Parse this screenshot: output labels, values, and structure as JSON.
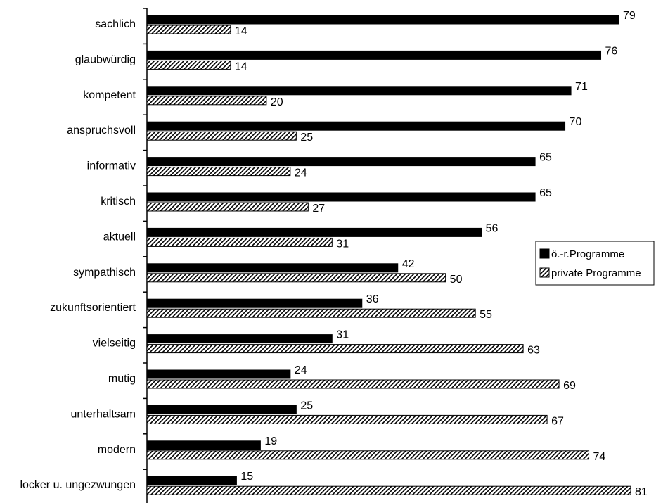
{
  "chart_data": {
    "type": "bar",
    "orientation": "horizontal",
    "categories": [
      "sachlich",
      "glaubwürdig",
      "kompetent",
      "anspruchsvoll",
      "informativ",
      "kritisch",
      "aktuell",
      "sympathisch",
      "zukunftsorientiert",
      "vielseitig",
      "mutig",
      "unterhaltsam",
      "modern",
      "locker u. ungezwungen"
    ],
    "series": [
      {
        "name": "ö.-r.Programme",
        "fill": "solid",
        "color": "#000000",
        "values": [
          79,
          76,
          71,
          70,
          65,
          65,
          56,
          42,
          36,
          31,
          24,
          25,
          19,
          15
        ]
      },
      {
        "name": "private Programme",
        "fill": "hatched",
        "color": "#000000",
        "values": [
          14,
          14,
          20,
          25,
          24,
          27,
          31,
          50,
          55,
          63,
          69,
          67,
          74,
          81
        ]
      }
    ],
    "title": "",
    "xlabel": "",
    "ylabel": "",
    "xlim": [
      0,
      83
    ],
    "data_labels": true,
    "gridlines": false,
    "legend_position": "right"
  }
}
